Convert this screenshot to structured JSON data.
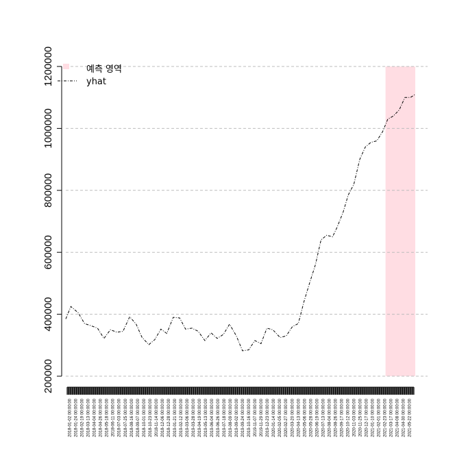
{
  "chart_data": {
    "type": "line",
    "title": "",
    "xlabel": "",
    "ylabel": "",
    "ylim": [
      200000,
      1200000
    ],
    "yticks": [
      200000,
      400000,
      600000,
      800000,
      1000000,
      1200000
    ],
    "ytick_labels": [
      "200000",
      "400000",
      "600000",
      "800000",
      "1000000",
      "1200000"
    ],
    "grid": true,
    "grid_style": "dashed-horizontal",
    "legend_position": "top-left",
    "legend": [
      {
        "label": "예측 영역",
        "kind": "fill",
        "color": "#ffdde3"
      },
      {
        "label": "yhat",
        "kind": "line",
        "color": "#000000",
        "dash": "dot-dash"
      }
    ],
    "x_start": "2018-01-02",
    "x_end": "2021-06-01",
    "forecast_region": {
      "start": "2021-02-15",
      "end": "2021-06-01",
      "label": "예측 영역",
      "color": "#ffdde3"
    },
    "xtick_labels": [
      "2018-01-02 00:00:00",
      "2018-01-24 00:00:00",
      "2018-02-19 00:00:00",
      "2018-03-13 00:00:00",
      "2018-04-04 00:00:00",
      "2018-04-26 00:00:00",
      "2018-05-18 00:00:00",
      "2018-06-11 00:00:00",
      "2018-07-03 00:00:00",
      "2018-07-25 00:00:00",
      "2018-08-16 00:00:00",
      "2018-09-07 00:00:00",
      "2018-10-01 00:00:00",
      "2018-10-23 00:00:00",
      "2018-11-14 00:00:00",
      "2018-12-06 00:00:00",
      "2018-12-28 00:00:00",
      "2019-01-21 00:00:00",
      "2019-02-12 00:00:00",
      "2019-03-06 00:00:00",
      "2019-03-28 00:00:00",
      "2019-04-19 00:00:00",
      "2019-05-13 00:00:00",
      "2019-06-04 00:00:00",
      "2019-06-26 00:00:00",
      "2019-07-18 00:00:00",
      "2019-08-09 00:00:00",
      "2019-09-02 00:00:00",
      "2019-09-24 00:00:00",
      "2019-10-16 00:00:00",
      "2019-11-07 00:00:00",
      "2019-11-29 00:00:00",
      "2019-12-23 00:00:00",
      "2020-01-14 00:00:00",
      "2020-02-05 00:00:00",
      "2020-02-27 00:00:00",
      "2020-03-20 00:00:00",
      "2020-04-13 00:00:00",
      "2020-05-06 00:00:00",
      "2020-05-28 00:00:00",
      "2020-06-19 00:00:00",
      "2020-07-13 00:00:00",
      "2020-08-04 00:00:00",
      "2020-08-26 00:00:00",
      "2020-09-17 00:00:00",
      "2020-10-12 00:00:00",
      "2020-11-03 00:00:00",
      "2020-11-25 00:00:00",
      "2020-12-17 00:00:00",
      "2021-01-10 00:00:00",
      "2021-02-01 00:00:00",
      "2021-02-23 00:00:00",
      "2021-03-17 00:00:00",
      "2021-04-08 00:00:00",
      "2021-04-30 00:00:00",
      "2021-05-22 00:00:00"
    ],
    "series": [
      {
        "name": "yhat",
        "color": "#000000",
        "x": [
          "2018-01-02",
          "2018-01-20",
          "2018-02-15",
          "2018-03-10",
          "2018-04-05",
          "2018-04-25",
          "2018-05-18",
          "2018-06-10",
          "2018-07-03",
          "2018-07-25",
          "2018-08-18",
          "2018-09-10",
          "2018-10-01",
          "2018-10-25",
          "2018-11-15",
          "2018-12-07",
          "2018-12-28",
          "2019-01-20",
          "2019-02-12",
          "2019-03-05",
          "2019-03-28",
          "2019-04-19",
          "2019-05-13",
          "2019-06-04",
          "2019-06-26",
          "2019-07-18",
          "2019-08-09",
          "2019-09-02",
          "2019-09-24",
          "2019-10-16",
          "2019-11-07",
          "2019-11-29",
          "2019-12-20",
          "2020-01-10",
          "2020-02-05",
          "2020-02-27",
          "2020-03-20",
          "2020-04-10",
          "2020-04-30",
          "2020-05-20",
          "2020-06-10",
          "2020-06-30",
          "2020-07-20",
          "2020-08-10",
          "2020-08-26",
          "2020-09-17",
          "2020-10-05",
          "2020-10-25",
          "2020-11-15",
          "2020-12-05",
          "2020-12-25",
          "2021-01-15",
          "2021-02-05",
          "2021-02-23",
          "2021-03-15",
          "2021-04-05",
          "2021-04-25",
          "2021-05-15",
          "2021-06-01"
        ],
        "values": [
          385000,
          425000,
          405000,
          370000,
          362000,
          355000,
          322000,
          350000,
          342000,
          345000,
          392000,
          368000,
          325000,
          302000,
          318000,
          352000,
          338000,
          390000,
          388000,
          352000,
          355000,
          345000,
          315000,
          340000,
          322000,
          335000,
          368000,
          330000,
          282000,
          285000,
          315000,
          305000,
          355000,
          350000,
          325000,
          330000,
          360000,
          370000,
          440000,
          500000,
          560000,
          640000,
          655000,
          650000,
          680000,
          730000,
          785000,
          820000,
          900000,
          940000,
          955000,
          960000,
          990000,
          1030000,
          1040000,
          1060000,
          1100000,
          1100000,
          1110000
        ]
      }
    ]
  }
}
